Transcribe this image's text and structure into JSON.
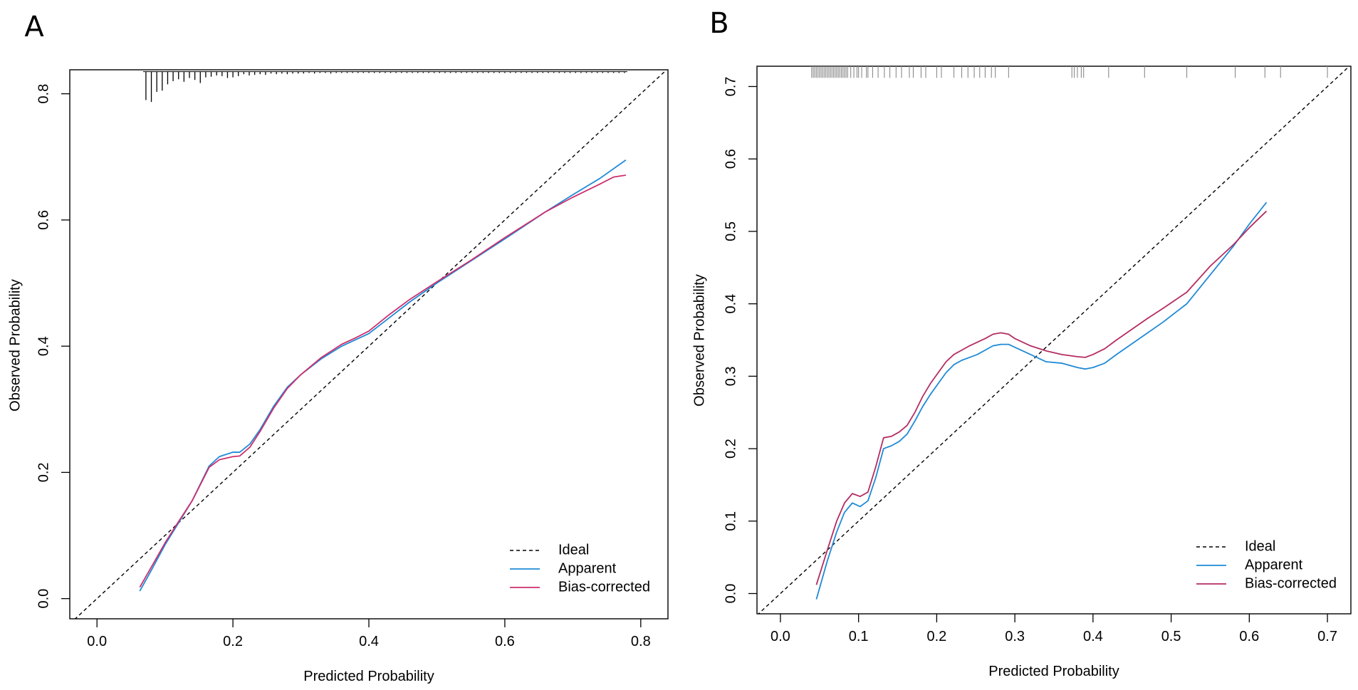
{
  "chart_data": [
    {
      "type": "line",
      "panel_label": "A",
      "xlabel": "Predicted Probability",
      "ylabel": "Observed  Probability",
      "xlim": [
        -0.04,
        0.84
      ],
      "ylim": [
        -0.032,
        0.838
      ],
      "xticks": [
        0.0,
        0.2,
        0.4,
        0.6,
        0.8
      ],
      "xtick_labels": [
        "0.0",
        "0.2",
        "0.4",
        "0.6",
        "0.8"
      ],
      "yticks": [
        0.0,
        0.2,
        0.4,
        0.6,
        0.8
      ],
      "ytick_labels": [
        "0.0",
        "0.2",
        "0.4",
        "0.6",
        "0.8"
      ],
      "rug": {
        "style": "histogram-spikes",
        "base_y": 0.835,
        "x": [
          0.072,
          0.08,
          0.088,
          0.096,
          0.104,
          0.112,
          0.12,
          0.128,
          0.136,
          0.144,
          0.152,
          0.16,
          0.168,
          0.176,
          0.184,
          0.192,
          0.2,
          0.208,
          0.216,
          0.224,
          0.232,
          0.24,
          0.248,
          0.256,
          0.264,
          0.272,
          0.28,
          0.288,
          0.296,
          0.304,
          0.312,
          0.32,
          0.328,
          0.336,
          0.344,
          0.352,
          0.36,
          0.368,
          0.376,
          0.384,
          0.392,
          0.4,
          0.408,
          0.416,
          0.424,
          0.432,
          0.44,
          0.448,
          0.456,
          0.464,
          0.472,
          0.48,
          0.488,
          0.496,
          0.504,
          0.512,
          0.52,
          0.528,
          0.536,
          0.544,
          0.552,
          0.56,
          0.568,
          0.576,
          0.584,
          0.592,
          0.6,
          0.608,
          0.616,
          0.624,
          0.632,
          0.64,
          0.648,
          0.656,
          0.664,
          0.672,
          0.68,
          0.688,
          0.696,
          0.704,
          0.712,
          0.72,
          0.728,
          0.736,
          0.744,
          0.752,
          0.76,
          0.768,
          0.776
        ],
        "heights": [
          0.045,
          0.048,
          0.032,
          0.03,
          0.02,
          0.015,
          0.012,
          0.016,
          0.01,
          0.013,
          0.018,
          0.009,
          0.008,
          0.006,
          0.007,
          0.01,
          0.009,
          0.007,
          0.004,
          0.006,
          0.005,
          0.004,
          0.005,
          0.003,
          0.004,
          0.003,
          0.004,
          0.003,
          0.003,
          0.003,
          0.002,
          0.003,
          0.002,
          0.002,
          0.003,
          0.002,
          0.002,
          0.002,
          0.002,
          0.002,
          0.002,
          0.002,
          0.002,
          0.002,
          0.002,
          0.002,
          0.002,
          0.002,
          0.002,
          0.002,
          0.002,
          0.002,
          0.002,
          0.002,
          0.002,
          0.002,
          0.002,
          0.002,
          0.002,
          0.002,
          0.002,
          0.002,
          0.002,
          0.002,
          0.002,
          0.002,
          0.002,
          0.002,
          0.002,
          0.002,
          0.002,
          0.002,
          0.002,
          0.002,
          0.002,
          0.002,
          0.002,
          0.002,
          0.002,
          0.002,
          0.002,
          0.002,
          0.002,
          0.002,
          0.002,
          0.002,
          0.002,
          0.002,
          0.002
        ]
      },
      "series": [
        {
          "name": "Ideal",
          "color": "#000000",
          "dash": true,
          "x": [
            -0.04,
            0.84
          ],
          "y": [
            -0.04,
            0.84
          ]
        },
        {
          "name": "Apparent",
          "color": "#1f8ad6",
          "dash": false,
          "x": [
            0.063,
            0.08,
            0.1,
            0.12,
            0.14,
            0.165,
            0.18,
            0.2,
            0.21,
            0.225,
            0.24,
            0.26,
            0.28,
            0.3,
            0.33,
            0.36,
            0.38,
            0.4,
            0.43,
            0.46,
            0.5,
            0.55,
            0.6,
            0.66,
            0.7,
            0.74,
            0.778
          ],
          "y": [
            0.012,
            0.045,
            0.085,
            0.12,
            0.155,
            0.21,
            0.225,
            0.232,
            0.232,
            0.245,
            0.268,
            0.305,
            0.335,
            0.355,
            0.38,
            0.4,
            0.41,
            0.42,
            0.445,
            0.47,
            0.5,
            0.535,
            0.57,
            0.613,
            0.64,
            0.666,
            0.695
          ]
        },
        {
          "name": "Bias-corrected",
          "color": "#cc2f6e",
          "dash": false,
          "x": [
            0.063,
            0.08,
            0.1,
            0.12,
            0.14,
            0.165,
            0.18,
            0.2,
            0.21,
            0.225,
            0.24,
            0.26,
            0.28,
            0.3,
            0.33,
            0.36,
            0.38,
            0.4,
            0.43,
            0.46,
            0.5,
            0.55,
            0.6,
            0.66,
            0.7,
            0.74,
            0.76,
            0.778
          ],
          "y": [
            0.018,
            0.05,
            0.088,
            0.122,
            0.155,
            0.208,
            0.22,
            0.225,
            0.226,
            0.24,
            0.265,
            0.302,
            0.333,
            0.355,
            0.382,
            0.403,
            0.413,
            0.424,
            0.45,
            0.474,
            0.502,
            0.536,
            0.572,
            0.613,
            0.636,
            0.657,
            0.668,
            0.671
          ]
        }
      ],
      "legend_position": "bottom-right"
    },
    {
      "type": "line",
      "panel_label": "B",
      "xlabel": "Predicted Probability",
      "ylabel": "Observed Probability",
      "xlim": [
        -0.03,
        0.73
      ],
      "ylim": [
        -0.028,
        0.728
      ],
      "xticks": [
        0.0,
        0.1,
        0.2,
        0.3,
        0.4,
        0.5,
        0.6,
        0.7
      ],
      "xtick_labels": [
        "0.0",
        "0.1",
        "0.2",
        "0.3",
        "0.4",
        "0.5",
        "0.6",
        "0.7"
      ],
      "yticks": [
        0.0,
        0.1,
        0.2,
        0.3,
        0.4,
        0.5,
        0.6,
        0.7
      ],
      "ytick_labels": [
        "0.0",
        "0.1",
        "0.2",
        "0.3",
        "0.4",
        "0.5",
        "0.6",
        "0.7"
      ],
      "rug": {
        "style": "ticks",
        "y_from": 0.712,
        "y_to": 0.728,
        "x": [
          0.04,
          0.042,
          0.044,
          0.046,
          0.048,
          0.05,
          0.052,
          0.054,
          0.056,
          0.058,
          0.06,
          0.062,
          0.064,
          0.066,
          0.068,
          0.07,
          0.072,
          0.074,
          0.076,
          0.078,
          0.08,
          0.082,
          0.084,
          0.086,
          0.09,
          0.094,
          0.098,
          0.1,
          0.104,
          0.11,
          0.112,
          0.118,
          0.125,
          0.133,
          0.14,
          0.148,
          0.155,
          0.165,
          0.17,
          0.18,
          0.186,
          0.2,
          0.206,
          0.222,
          0.232,
          0.24,
          0.248,
          0.255,
          0.262,
          0.27,
          0.275,
          0.292,
          0.373,
          0.376,
          0.38,
          0.385,
          0.388,
          0.42,
          0.466,
          0.52,
          0.582,
          0.62,
          0.64,
          0.7
        ]
      },
      "series": [
        {
          "name": "Ideal",
          "color": "#000000",
          "dash": true,
          "x": [
            -0.03,
            0.73
          ],
          "y": [
            -0.03,
            0.73
          ]
        },
        {
          "name": "Apparent",
          "color": "#1f8ad6",
          "dash": false,
          "x": [
            0.046,
            0.06,
            0.072,
            0.082,
            0.092,
            0.102,
            0.112,
            0.122,
            0.132,
            0.142,
            0.152,
            0.162,
            0.172,
            0.182,
            0.192,
            0.202,
            0.212,
            0.222,
            0.232,
            0.242,
            0.252,
            0.262,
            0.272,
            0.282,
            0.292,
            0.3,
            0.32,
            0.34,
            0.36,
            0.38,
            0.39,
            0.4,
            0.415,
            0.43,
            0.45,
            0.47,
            0.49,
            0.52,
            0.55,
            0.58,
            0.6,
            0.622
          ],
          "y": [
            -0.008,
            0.045,
            0.085,
            0.112,
            0.125,
            0.12,
            0.128,
            0.16,
            0.2,
            0.204,
            0.21,
            0.22,
            0.238,
            0.258,
            0.275,
            0.29,
            0.305,
            0.316,
            0.322,
            0.326,
            0.33,
            0.336,
            0.342,
            0.344,
            0.344,
            0.34,
            0.33,
            0.32,
            0.318,
            0.312,
            0.31,
            0.312,
            0.318,
            0.33,
            0.345,
            0.36,
            0.375,
            0.4,
            0.44,
            0.48,
            0.51,
            0.54
          ]
        },
        {
          "name": "Bias-corrected",
          "color": "#b52c62",
          "dash": false,
          "x": [
            0.046,
            0.06,
            0.072,
            0.082,
            0.092,
            0.102,
            0.112,
            0.122,
            0.132,
            0.142,
            0.152,
            0.162,
            0.172,
            0.182,
            0.192,
            0.202,
            0.212,
            0.222,
            0.232,
            0.242,
            0.252,
            0.262,
            0.272,
            0.282,
            0.292,
            0.3,
            0.32,
            0.34,
            0.36,
            0.38,
            0.39,
            0.4,
            0.415,
            0.43,
            0.45,
            0.47,
            0.49,
            0.52,
            0.55,
            0.58,
            0.6,
            0.622
          ],
          "y": [
            0.012,
            0.06,
            0.1,
            0.125,
            0.138,
            0.134,
            0.14,
            0.175,
            0.215,
            0.217,
            0.223,
            0.232,
            0.25,
            0.272,
            0.29,
            0.305,
            0.32,
            0.33,
            0.336,
            0.342,
            0.347,
            0.352,
            0.358,
            0.36,
            0.358,
            0.352,
            0.342,
            0.335,
            0.33,
            0.327,
            0.326,
            0.33,
            0.338,
            0.35,
            0.365,
            0.38,
            0.394,
            0.416,
            0.452,
            0.482,
            0.505,
            0.528
          ]
        }
      ],
      "legend_position": "bottom-right"
    }
  ]
}
